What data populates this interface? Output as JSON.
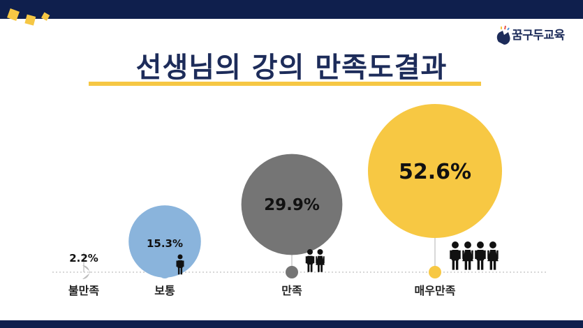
{
  "page": {
    "title": "선생님의 강의 만족도결과",
    "logo": "꿈구두교육"
  },
  "colors": {
    "navy": "#0f1f4d",
    "accent_yellow": "#f6c744",
    "gray_light": "#bdbdbd",
    "blue": "#8ab4dc",
    "gray_dark": "#757575",
    "yellow": "#f7c843"
  },
  "chart_data": {
    "type": "bubble",
    "title": "선생님의 강의 만족도결과",
    "categories": [
      "불만족",
      "보통",
      "만족",
      "매우만족"
    ],
    "values": [
      2.2,
      15.3,
      29.9,
      52.6
    ],
    "labels": [
      "2.2%",
      "15.3%",
      "29.9%",
      "52.6%"
    ],
    "people_icons": [
      0,
      1,
      2,
      4
    ],
    "colors": [
      "#bdbdbd",
      "#8ab4dc",
      "#757575",
      "#f7c843"
    ]
  }
}
